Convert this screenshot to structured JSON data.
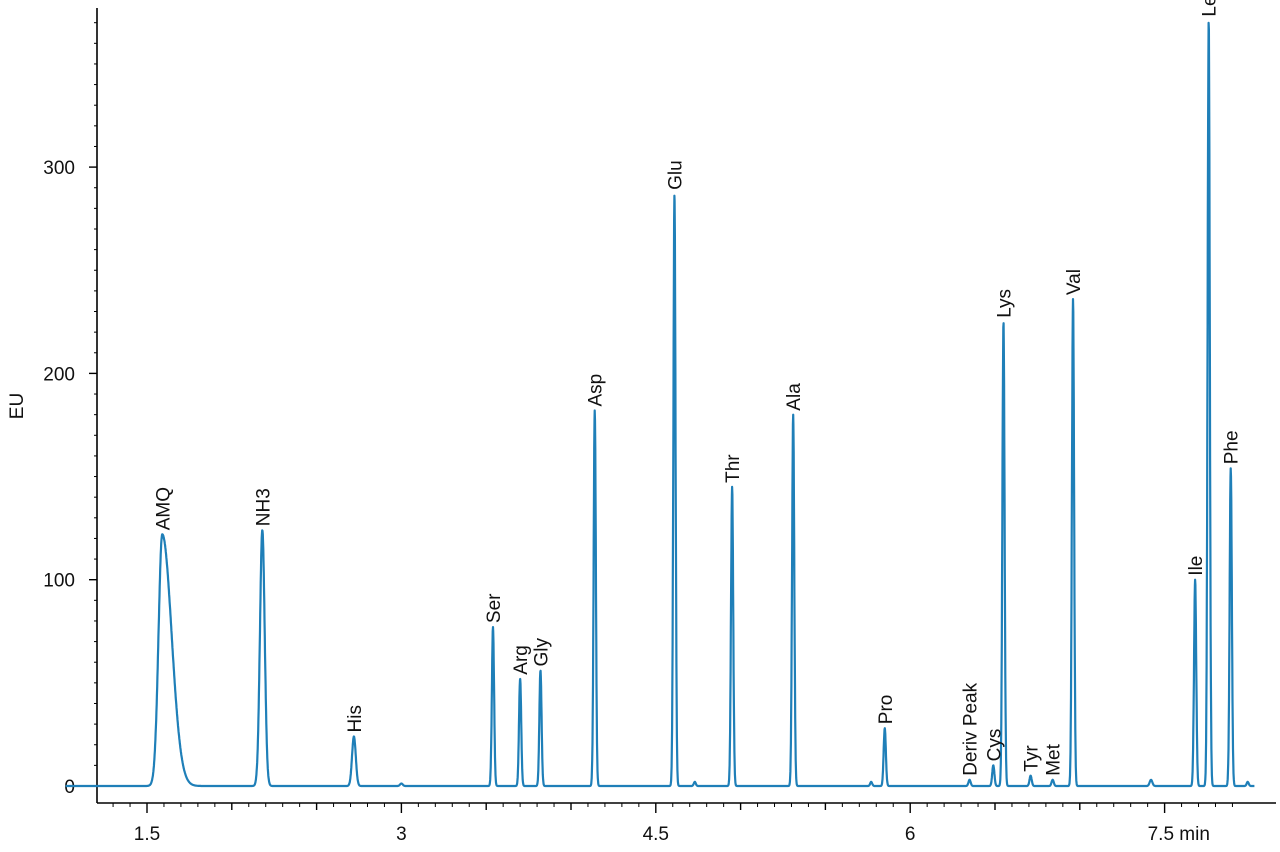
{
  "chart_data": {
    "type": "line",
    "title": "",
    "xlabel": "",
    "ylabel": "EU",
    "x_unit_label": "min",
    "xlim": [
      1.0,
      8.0
    ],
    "ylim": [
      -5,
      375
    ],
    "x_ticks": [
      1.5,
      3,
      4.5,
      6,
      7.5
    ],
    "x_tick_labels": [
      "1.5",
      "3",
      "4.5",
      "6",
      "7.5 min"
    ],
    "y_ticks": [
      0,
      100,
      200,
      300
    ],
    "y_tick_labels": [
      "0",
      "100",
      "200",
      "300"
    ],
    "grid": false,
    "legend": "none",
    "colors": {
      "trace": "#1f7fb8",
      "axis": "#000000"
    },
    "series": [
      {
        "peaks": [
          {
            "label": "AMQ",
            "x": 1.59,
            "y": 122
          },
          {
            "label": "NH3",
            "x": 2.18,
            "y": 124
          },
          {
            "label": "His",
            "x": 2.72,
            "y": 24
          },
          {
            "label": "Ser",
            "x": 3.54,
            "y": 77
          },
          {
            "label": "Arg",
            "x": 3.7,
            "y": 52
          },
          {
            "label": "Gly",
            "x": 3.82,
            "y": 56
          },
          {
            "label": "Asp",
            "x": 4.14,
            "y": 182
          },
          {
            "label": "Glu",
            "x": 4.61,
            "y": 287
          },
          {
            "label": "Thr",
            "x": 4.95,
            "y": 145
          },
          {
            "label": "Ala",
            "x": 5.31,
            "y": 180
          },
          {
            "label": "Pro",
            "x": 5.85,
            "y": 28
          },
          {
            "label": "Deriv Peak",
            "x": 6.35,
            "y": 3
          },
          {
            "label": "Cys",
            "x": 6.49,
            "y": 10
          },
          {
            "label": "Lys",
            "x": 6.55,
            "y": 225
          },
          {
            "label": "Tyr",
            "x": 6.71,
            "y": 5
          },
          {
            "label": "Met",
            "x": 6.84,
            "y": 3
          },
          {
            "label": "Val",
            "x": 6.96,
            "y": 236
          },
          {
            "label": "Ile",
            "x": 7.68,
            "y": 100
          },
          {
            "label": "Leu",
            "x": 7.76,
            "y": 371
          },
          {
            "label": "Phe",
            "x": 7.89,
            "y": 154
          }
        ]
      }
    ]
  }
}
